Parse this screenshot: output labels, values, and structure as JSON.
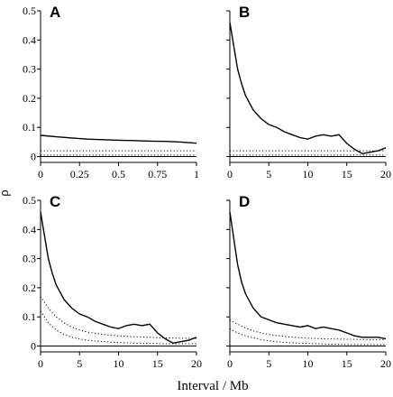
{
  "figure": {
    "xlabel": "Interval / Mb",
    "ylabel": "ρ"
  },
  "chart_data": [
    {
      "type": "line",
      "panel": "A",
      "xlim": [
        0,
        1
      ],
      "ylim": [
        -0.02,
        0.5
      ],
      "xticks": [
        0,
        0.25,
        0.5,
        0.75,
        1
      ],
      "xtick_labels": [
        "0",
        "0.25",
        "0.5",
        "0.75",
        "1"
      ],
      "yticks": [
        0,
        0.1,
        0.2,
        0.3,
        0.4,
        0.5
      ],
      "ytick_labels": [
        "0",
        "0.1",
        "0.2",
        "0.3",
        "0.4",
        "0.5"
      ],
      "show_xtick_labels": true,
      "show_ytick_labels": true,
      "series": [
        {
          "style": "solid",
          "x": [
            0,
            0.1,
            0.2,
            0.3,
            0.4,
            0.5,
            0.6,
            0.7,
            0.8,
            0.9,
            1
          ],
          "y": [
            0.073,
            0.068,
            0.064,
            0.06,
            0.058,
            0.056,
            0.055,
            0.053,
            0.052,
            0.05,
            0.046
          ]
        },
        {
          "style": "dotted",
          "x": [
            0,
            1
          ],
          "y": [
            0.02,
            0.02
          ]
        },
        {
          "style": "dotted",
          "x": [
            0,
            1
          ],
          "y": [
            0.005,
            0.005
          ]
        },
        {
          "style": "baseline",
          "x": [
            0,
            1
          ],
          "y": [
            0,
            0
          ]
        }
      ]
    },
    {
      "type": "line",
      "panel": "B",
      "xlim": [
        0,
        20
      ],
      "ylim": [
        -0.02,
        0.5
      ],
      "xticks": [
        0,
        5,
        10,
        15,
        20
      ],
      "xtick_labels": [
        "0",
        "5",
        "10",
        "15",
        "20"
      ],
      "yticks": [
        0,
        0.1,
        0.2,
        0.3,
        0.4,
        0.5
      ],
      "ytick_labels": [
        "0",
        "0.1",
        "0.2",
        "0.3",
        "0.4",
        "0.5"
      ],
      "show_xtick_labels": true,
      "show_ytick_labels": false,
      "series": [
        {
          "style": "solid",
          "x": [
            0,
            0.5,
            1,
            1.5,
            2,
            3,
            4,
            5,
            6,
            7,
            8,
            9,
            10,
            11,
            12,
            13,
            14,
            14.5,
            15,
            16,
            17,
            18,
            19,
            20
          ],
          "y": [
            0.46,
            0.38,
            0.3,
            0.25,
            0.21,
            0.16,
            0.13,
            0.11,
            0.1,
            0.085,
            0.075,
            0.065,
            0.06,
            0.07,
            0.075,
            0.07,
            0.075,
            0.06,
            0.045,
            0.025,
            0.01,
            0.015,
            0.02,
            0.03
          ]
        },
        {
          "style": "dotted",
          "x": [
            0,
            20
          ],
          "y": [
            0.02,
            0.02
          ]
        },
        {
          "style": "dotted",
          "x": [
            0,
            20
          ],
          "y": [
            0.005,
            0.005
          ]
        },
        {
          "style": "baseline",
          "x": [
            0,
            20
          ],
          "y": [
            0,
            0
          ]
        }
      ]
    },
    {
      "type": "line",
      "panel": "C",
      "xlim": [
        0,
        20
      ],
      "ylim": [
        -0.02,
        0.5
      ],
      "xticks": [
        0,
        5,
        10,
        15,
        20
      ],
      "xtick_labels": [
        "0",
        "5",
        "10",
        "15",
        "20"
      ],
      "yticks": [
        0,
        0.1,
        0.2,
        0.3,
        0.4,
        0.5
      ],
      "ytick_labels": [
        "0",
        "0.1",
        "0.2",
        "0.3",
        "0.4",
        "0.5"
      ],
      "show_xtick_labels": true,
      "show_ytick_labels": true,
      "series": [
        {
          "style": "solid",
          "x": [
            0,
            0.5,
            1,
            1.5,
            2,
            3,
            4,
            5,
            6,
            7,
            8,
            9,
            10,
            11,
            12,
            13,
            14,
            15,
            16,
            17,
            18,
            19,
            20
          ],
          "y": [
            0.46,
            0.38,
            0.3,
            0.25,
            0.21,
            0.16,
            0.13,
            0.11,
            0.1,
            0.085,
            0.075,
            0.065,
            0.06,
            0.07,
            0.075,
            0.07,
            0.075,
            0.045,
            0.025,
            0.01,
            0.015,
            0.02,
            0.03
          ]
        },
        {
          "style": "dotted",
          "x": [
            0,
            1,
            2,
            3,
            4,
            5,
            6,
            8,
            10,
            12,
            14,
            16,
            18,
            20
          ],
          "y": [
            0.17,
            0.13,
            0.1,
            0.08,
            0.065,
            0.055,
            0.048,
            0.04,
            0.035,
            0.032,
            0.03,
            0.028,
            0.027,
            0.026
          ]
        },
        {
          "style": "dotted",
          "x": [
            0,
            1,
            2,
            3,
            4,
            5,
            6,
            8,
            10,
            12,
            14,
            16,
            18,
            20
          ],
          "y": [
            0.12,
            0.08,
            0.055,
            0.04,
            0.03,
            0.024,
            0.02,
            0.015,
            0.012,
            0.01,
            0.009,
            0.008,
            0.008,
            0.008
          ]
        },
        {
          "style": "baseline",
          "x": [
            0,
            20
          ],
          "y": [
            0,
            0
          ]
        }
      ]
    },
    {
      "type": "line",
      "panel": "D",
      "xlim": [
        0,
        20
      ],
      "ylim": [
        -0.02,
        0.5
      ],
      "xticks": [
        0,
        5,
        10,
        15,
        20
      ],
      "xtick_labels": [
        "0",
        "5",
        "10",
        "15",
        "20"
      ],
      "yticks": [
        0,
        0.1,
        0.2,
        0.3,
        0.4,
        0.5
      ],
      "ytick_labels": [
        "0",
        "0.1",
        "0.2",
        "0.3",
        "0.4",
        "0.5"
      ],
      "show_xtick_labels": true,
      "show_ytick_labels": false,
      "series": [
        {
          "style": "solid",
          "x": [
            0,
            0.5,
            1,
            1.5,
            2,
            3,
            4,
            5,
            6,
            7,
            8,
            9,
            10,
            11,
            12,
            13,
            14,
            15,
            16,
            17,
            18,
            19,
            20
          ],
          "y": [
            0.46,
            0.37,
            0.28,
            0.22,
            0.18,
            0.13,
            0.1,
            0.09,
            0.08,
            0.075,
            0.07,
            0.065,
            0.07,
            0.06,
            0.065,
            0.06,
            0.055,
            0.045,
            0.035,
            0.03,
            0.03,
            0.03,
            0.025
          ]
        },
        {
          "style": "dotted",
          "x": [
            0,
            1,
            2,
            3,
            4,
            5,
            6,
            8,
            10,
            12,
            14,
            16,
            18,
            20
          ],
          "y": [
            0.09,
            0.075,
            0.062,
            0.052,
            0.045,
            0.04,
            0.036,
            0.03,
            0.027,
            0.025,
            0.024,
            0.023,
            0.022,
            0.022
          ]
        },
        {
          "style": "dotted",
          "x": [
            0,
            1,
            2,
            3,
            4,
            5,
            6,
            8,
            10,
            12,
            14,
            16,
            18,
            20
          ],
          "y": [
            0.06,
            0.045,
            0.035,
            0.028,
            0.022,
            0.018,
            0.015,
            0.011,
            0.009,
            0.007,
            0.006,
            0.005,
            0.005,
            0.005
          ]
        },
        {
          "style": "baseline",
          "x": [
            0,
            20
          ],
          "y": [
            0,
            0
          ]
        }
      ]
    }
  ]
}
